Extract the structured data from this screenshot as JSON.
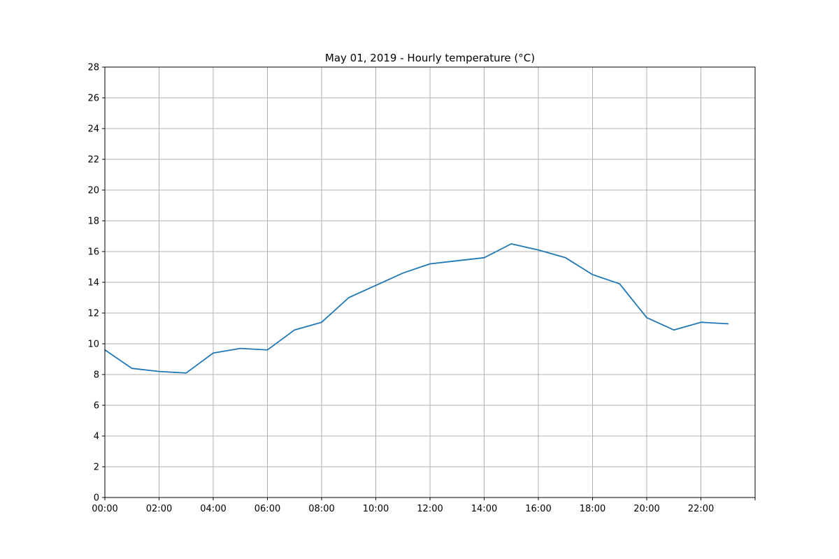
{
  "chart_data": {
    "type": "line",
    "title": "May 01, 2019 - Hourly temperature (°C)",
    "xlabel": "",
    "ylabel": "",
    "x": [
      "00:00",
      "01:00",
      "02:00",
      "03:00",
      "04:00",
      "05:00",
      "06:00",
      "07:00",
      "08:00",
      "09:00",
      "10:00",
      "11:00",
      "12:00",
      "13:00",
      "14:00",
      "15:00",
      "16:00",
      "17:00",
      "18:00",
      "19:00",
      "20:00",
      "21:00",
      "22:00",
      "23:00"
    ],
    "series": [
      {
        "values": [
          9.6,
          8.4,
          8.2,
          8.1,
          9.4,
          9.7,
          9.6,
          10.9,
          11.4,
          13.0,
          13.8,
          14.6,
          15.2,
          15.4,
          15.6,
          16.5,
          16.1,
          15.6,
          14.5,
          13.9,
          11.7,
          10.9,
          11.4,
          11.3
        ],
        "color": "#1f77b4"
      }
    ],
    "x_tick_labels": [
      "00:00",
      "02:00",
      "04:00",
      "06:00",
      "08:00",
      "10:00",
      "12:00",
      "14:00",
      "16:00",
      "18:00",
      "20:00",
      "22:00",
      ""
    ],
    "y_ticks": [
      0,
      2,
      4,
      6,
      8,
      10,
      12,
      14,
      16,
      18,
      20,
      22,
      24,
      26,
      28
    ],
    "xlim": [
      "00:00",
      "24:00"
    ],
    "ylim": [
      0,
      28
    ],
    "grid": true,
    "legend": "none"
  }
}
